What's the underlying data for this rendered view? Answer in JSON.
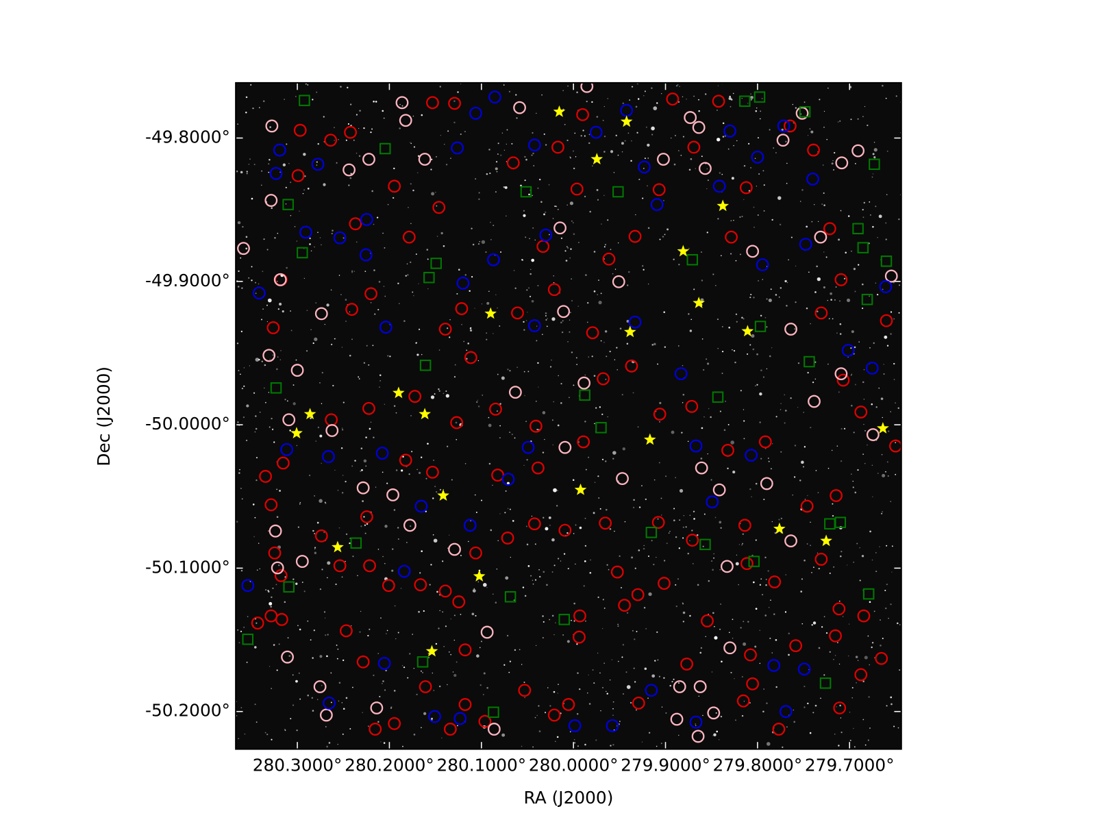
{
  "chart_data": {
    "type": "scatter",
    "xlabel": "RA (J2000)",
    "ylabel": "Dec (J2000)",
    "xlim": [
      280.3669,
      279.6438
    ],
    "ylim": [
      -50.2262,
      -49.7615
    ],
    "xticks": [
      {
        "value": 280.3,
        "label": "280.3000°"
      },
      {
        "value": 280.2,
        "label": "280.2000°"
      },
      {
        "value": 280.1,
        "label": "280.1000°"
      },
      {
        "value": 280.0,
        "label": "280.0000°"
      },
      {
        "value": 279.9,
        "label": "279.9000°"
      },
      {
        "value": 279.8,
        "label": "279.8000°"
      },
      {
        "value": 279.7,
        "label": "279.7000°"
      }
    ],
    "yticks": [
      {
        "value": -49.8,
        "label": "-49.8000°"
      },
      {
        "value": -49.9,
        "label": "-49.9000°"
      },
      {
        "value": -50.0,
        "label": "-50.0000°"
      },
      {
        "value": -50.1,
        "label": "-50.1000°"
      },
      {
        "value": -50.2,
        "label": "-50.2000°"
      }
    ],
    "series": [
      {
        "marker": "circle",
        "color": "#e00000",
        "x": [
          280.2969,
          280.2638,
          280.2423,
          280.2992,
          280.3177,
          280.3262,
          280.2408,
          280.22,
          280.2369,
          280.1946,
          280.1531,
          280.1292,
          280.1785,
          280.1462,
          280.1392,
          280.1215,
          280.1723,
          280.1115,
          280.0846,
          280.0408,
          280.0608,
          280.0654,
          280.0331,
          280.0208,
          280.0169,
          279.99,
          279.9962,
          279.9792,
          279.9615,
          279.9331,
          279.9069,
          279.8923,
          279.8692,
          279.8423,
          279.8285,
          279.8123,
          279.7646,
          279.7392,
          279.7215,
          279.7092,
          279.7308,
          279.7069,
          279.6877,
          279.66,
          279.7146,
          279.7462,
          279.7915,
          279.8323,
          279.8715,
          279.9062,
          279.9369,
          279.9677,
          279.9892,
          280.0385,
          280.0823,
          280.1269,
          280.1531,
          280.1823,
          280.2223,
          280.2631,
          280.2246,
          280.2738,
          280.2538,
          280.2215,
          280.2008,
          280.1662,
          280.1392,
          280.1246,
          280.1062,
          280.0715,
          280.0423,
          280.0092,
          279.9654,
          279.9523,
          279.93,
          279.9077,
          279.8708,
          279.8138,
          279.7815,
          279.8546,
          279.8769,
          279.9015,
          279.8077,
          279.8054,
          279.8154,
          279.7769,
          279.7585,
          279.7154,
          279.7115,
          279.7308,
          279.7108,
          279.6877,
          279.6846,
          279.6654,
          279.65,
          280.3285,
          280.3431,
          280.3169,
          280.3177,
          280.3246,
          280.3285,
          280.3346,
          280.3154,
          280.2469,
          280.2285,
          280.2154,
          280.1946,
          280.1608,
          280.1338,
          280.1177,
          280.1177,
          280.0962,
          280.0531,
          280.0208,
          280.0054,
          279.9938,
          279.9931,
          279.9446,
          279.9292,
          279.8115
        ],
        "y": [
          -49.7946,
          -49.8015,
          -49.796,
          -49.8262,
          -49.8988,
          -49.9323,
          -49.9195,
          -49.9086,
          -49.8598,
          -49.8336,
          -49.7753,
          -49.7758,
          -49.8691,
          -49.8484,
          -49.9333,
          -49.919,
          -49.9802,
          -49.9531,
          -49.9891,
          -50.001,
          -49.922,
          -49.8173,
          -49.8756,
          -49.9057,
          -49.8064,
          -49.7837,
          -49.8356,
          -49.9358,
          -49.8844,
          -49.8686,
          -49.836,
          -49.7728,
          -49.8064,
          -49.7743,
          -49.8691,
          -49.8346,
          -49.7916,
          -49.8084,
          -49.8632,
          -49.8988,
          -49.922,
          -49.9689,
          -49.9911,
          -49.9274,
          -50.0494,
          -50.0568,
          -50.0119,
          -50.0178,
          -49.9872,
          -49.9926,
          -49.959,
          -49.9679,
          -50.0119,
          -50.0301,
          -50.0351,
          -49.9985,
          -50.0331,
          -50.0247,
          -49.9886,
          -49.9965,
          -50.0642,
          -50.0775,
          -50.0983,
          -50.0983,
          -50.1121,
          -50.1116,
          -50.116,
          -50.1235,
          -50.0894,
          -50.079,
          -50.0691,
          -50.0736,
          -50.0686,
          -50.1027,
          -50.1185,
          -50.0681,
          -50.0805,
          -50.0701,
          -50.1096,
          -50.1368,
          -50.1669,
          -50.1106,
          -50.1605,
          -50.1807,
          -50.1926,
          -50.2123,
          -50.1541,
          -50.1472,
          -50.1284,
          -50.0938,
          -50.1975,
          -50.1743,
          -50.1333,
          -50.163,
          -50.0148,
          -50.1333,
          -50.1383,
          -50.1358,
          -50.1052,
          -50.0894,
          -50.0558,
          -50.036,
          -50.0267,
          -50.1437,
          -50.1654,
          -50.2123,
          -50.2084,
          -50.1827,
          -50.2123,
          -50.1951,
          -50.157,
          -50.2069,
          -50.1852,
          -50.2025,
          -50.1951,
          -50.1481,
          -50.1333,
          -50.1259,
          -50.1941,
          -50.0968
        ]
      },
      {
        "marker": "circle",
        "color": "#ffb6c1",
        "x": [
          280.3277,
          280.3285,
          280.3585,
          280.3185,
          280.2738,
          280.3308,
          280.3,
          280.3092,
          280.2623,
          280.2285,
          280.3238,
          280.2946,
          280.3215,
          280.3108,
          280.2754,
          280.2685,
          280.2138,
          280.1862,
          280.1823,
          280.2438,
          280.2223,
          280.1615,
          280.0585,
          280.0146,
          280.0108,
          279.9854,
          279.9508,
          279.9023,
          279.8731,
          279.8638,
          279.8569,
          279.8054,
          279.7638,
          279.7515,
          279.7723,
          279.7315,
          279.7085,
          279.6908,
          279.6546,
          279.7092,
          279.6746,
          279.7385,
          279.8608,
          279.8415,
          279.8331,
          279.79,
          279.7638,
          279.83,
          279.8846,
          279.8623,
          279.8477,
          279.8877,
          279.8646,
          280.0862,
          280.0938,
          280.0631,
          280.0092,
          279.9885,
          279.9469,
          280.1292,
          280.1777,
          280.1962
        ],
        "y": [
          -49.7916,
          -49.8435,
          -49.877,
          -49.8988,
          -49.9225,
          -49.9516,
          -49.962,
          -49.9965,
          -50.004,
          -50.044,
          -50.0741,
          -50.0953,
          -50.0998,
          -50.162,
          -50.1827,
          -50.2025,
          -50.1975,
          -49.7753,
          -49.7877,
          -49.8222,
          -49.8148,
          -49.8148,
          -49.7788,
          -49.8627,
          -49.921,
          -49.764,
          -49.9002,
          -49.8148,
          -49.7857,
          -49.7926,
          -49.8212,
          -49.879,
          -49.9333,
          -49.7827,
          -49.8015,
          -49.8691,
          -49.8173,
          -49.8089,
          -49.8963,
          -49.9644,
          -50.0069,
          -49.9837,
          -50.0301,
          -50.0454,
          -50.0988,
          -50.041,
          -50.081,
          -50.1556,
          -50.1827,
          -50.1827,
          -50.201,
          -50.2054,
          -50.2173,
          -50.2123,
          -50.1447,
          -49.9773,
          -50.0158,
          -49.9709,
          -50.0375,
          -50.0869,
          -50.0701,
          -50.0489
        ]
      },
      {
        "marker": "circle",
        "color": "#0000dd",
        "x": [
          280.3415,
          280.3192,
          280.3231,
          280.2908,
          280.2777,
          280.2538,
          280.2246,
          280.2254,
          280.2038,
          280.2077,
          280.1838,
          280.1262,
          280.1062,
          280.0854,
          280.12,
          280.0869,
          280.0423,
          280.0423,
          280.03,
          279.9754,
          279.9423,
          279.9231,
          279.9092,
          279.9331,
          279.8831,
          279.83,
          279.8415,
          279.8,
          279.7715,
          279.7477,
          279.74,
          279.7946,
          279.7015,
          279.6754,
          279.6608,
          279.7823,
          279.7492,
          279.7692,
          279.8669,
          279.9154,
          279.9577,
          279.9985,
          280.1231,
          280.1508,
          280.2054,
          280.2654,
          280.3538,
          280.3115,
          280.2662,
          280.1654,
          280.1123,
          280.0708,
          280.0492,
          279.8669,
          279.8492,
          279.8069
        ],
        "y": [
          -49.9081,
          -49.8084,
          -49.8247,
          -49.8657,
          -49.8183,
          -49.8696,
          -49.8568,
          -49.8815,
          -49.9319,
          -50.0198,
          -50.1022,
          -49.8069,
          -49.7827,
          -49.7714,
          -49.9012,
          -49.8849,
          -49.9309,
          -49.8049,
          -49.8677,
          -49.796,
          -49.7807,
          -49.8202,
          -49.8464,
          -49.9284,
          -49.9644,
          -49.7951,
          -49.8336,
          -49.8133,
          -49.7916,
          -49.8741,
          -49.8286,
          -49.8884,
          -49.9481,
          -49.9605,
          -49.9037,
          -50.1679,
          -50.1704,
          -50.2,
          -50.2074,
          -50.1852,
          -50.2099,
          -50.2099,
          -50.2049,
          -50.2035,
          -50.1664,
          -50.1941,
          -50.1121,
          -50.0173,
          -50.0222,
          -50.0568,
          -50.0701,
          -50.038,
          -50.0158,
          -50.0148,
          -50.0538,
          -50.0212
        ]
      },
      {
        "marker": "square",
        "color": "#007a00",
        "x": [
          280.2923,
          280.2046,
          280.31,
          280.0515,
          279.9515,
          280.2946,
          280.1569,
          280.1492,
          279.8708,
          279.6908,
          279.6854,
          279.6808,
          279.7969,
          279.7438,
          280.1608,
          280.3231,
          279.9877,
          279.97,
          279.8431,
          279.6731,
          279.8138,
          279.7977,
          279.7485,
          279.9154,
          279.8569,
          280.2362,
          279.7215,
          279.71,
          279.8038,
          280.3092,
          280.0685,
          280.01,
          280.3538,
          280.1638,
          280.0869,
          279.7262,
          279.6792,
          279.66
        ],
        "y": [
          -49.7738,
          -49.8074,
          -49.8464,
          -49.8375,
          -49.8375,
          -49.88,
          -49.8973,
          -49.8874,
          -49.8849,
          -49.8632,
          -49.8765,
          -49.9126,
          -49.9314,
          -49.956,
          -49.9585,
          -49.9743,
          -49.9793,
          -50.002,
          -49.9807,
          -49.8183,
          -49.7743,
          -49.7714,
          -49.7817,
          -50.0751,
          -50.0835,
          -50.0825,
          -50.0691,
          -50.0681,
          -50.0953,
          -50.1131,
          -50.12,
          -50.1358,
          -50.1496,
          -50.1654,
          -50.2005,
          -50.1802,
          -50.118,
          -49.8859
        ]
      },
      {
        "marker": "star",
        "color": "#ffff00",
        "x": [
          280.0154,
          279.9423,
          279.9746,
          279.8377,
          279.8808,
          279.8638,
          280.09,
          279.9385,
          279.8108,
          280.19,
          280.1615,
          280.2862,
          280.3008,
          279.6638,
          279.9169,
          279.9923,
          280.1415,
          279.7762,
          279.7254,
          280.2562,
          280.1023,
          280.1538
        ],
        "y": [
          -49.7817,
          -49.7886,
          -49.8148,
          -49.8474,
          -49.879,
          -49.9151,
          -49.9225,
          -49.9353,
          -49.9348,
          -49.9778,
          -49.9926,
          -49.9926,
          -50.0059,
          -50.0025,
          -50.0104,
          -50.0454,
          -50.0494,
          -50.0726,
          -50.081,
          -50.0854,
          -50.1057,
          -50.158
        ]
      }
    ]
  }
}
